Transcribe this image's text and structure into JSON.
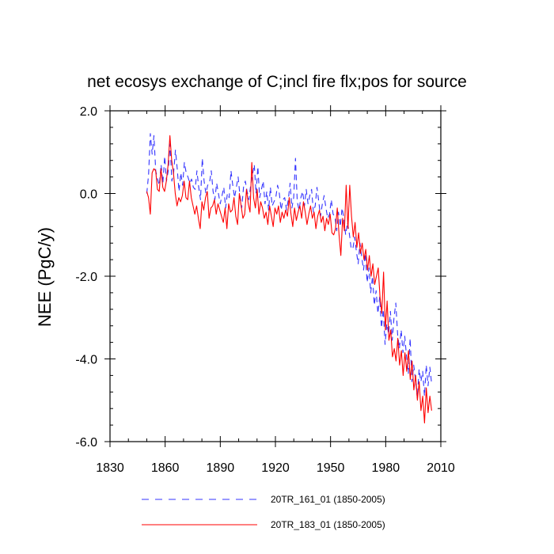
{
  "chart_data": {
    "type": "line",
    "title": "net ecosys exchange of C;incl fire flx;pos for source",
    "xlabel": "",
    "ylabel": "NEE  (PgC/y)",
    "xlim": [
      1830,
      2010
    ],
    "ylim": [
      -6.0,
      2.0
    ],
    "xticks": [
      1830,
      1860,
      1890,
      1920,
      1950,
      1980,
      2010
    ],
    "xtick_labels": [
      "1830",
      "1860",
      "1890",
      "1920",
      "1950",
      "1980",
      "2010"
    ],
    "yticks": [
      -6.0,
      -4.0,
      -2.0,
      0.0,
      2.0
    ],
    "ytick_labels": [
      "-6.0",
      "-4.0",
      "-2.0",
      "0.0",
      "2.0"
    ],
    "x_start": 1850,
    "x_end": 2005,
    "legend_position": "bottom",
    "series": [
      {
        "name": "20TR_161_01 (1850-2005)",
        "color": "#3333ff",
        "dash": "dashed",
        "values": [
          0.0,
          0.45,
          1.45,
          0.95,
          1.4,
          0.55,
          0.35,
          0.2,
          0.7,
          0.25,
          0.9,
          0.3,
          0.55,
          1.2,
          0.3,
          0.5,
          1.05,
          0.6,
          0.05,
          0.5,
          0.2,
          0.75,
          0.5,
          0.4,
          0.25,
          0.35,
          0.15,
          0.1,
          0.55,
          0.15,
          -0.15,
          0.85,
          0.3,
          0.0,
          0.2,
          0.25,
          0.55,
          0.05,
          -0.15,
          0.25,
          0.0,
          -0.25,
          -0.05,
          0.15,
          -0.35,
          0.0,
          -0.1,
          0.55,
          0.2,
          -0.1,
          0.15,
          0.4,
          -0.05,
          -0.35,
          0.15,
          0.3,
          0.05,
          -0.15,
          0.2,
          0.45,
          0.7,
          0.0,
          0.65,
          -0.1,
          0.1,
          0.3,
          -0.25,
          0.05,
          -0.4,
          0.15,
          -0.3,
          -0.2,
          -0.1,
          0.2,
          0.0,
          -0.4,
          -0.15,
          -0.1,
          -0.4,
          -0.15,
          0.25,
          -0.35,
          -0.1,
          0.85,
          -0.2,
          -0.4,
          -0.1,
          0.05,
          -0.3,
          0.1,
          -0.25,
          -0.05,
          0.1,
          -0.45,
          -0.3,
          0.15,
          -0.2,
          -0.55,
          -0.25,
          -0.05,
          -0.35,
          -0.6,
          -0.5,
          -0.15,
          -0.5,
          -0.55,
          -0.9,
          -0.45,
          -0.8,
          -0.35,
          -0.6,
          -1.0,
          -0.7,
          -0.95,
          -1.3,
          -1.35,
          -1.05,
          -1.4,
          -1.7,
          -1.2,
          -1.55,
          -1.85,
          -1.45,
          -2.15,
          -1.8,
          -2.4,
          -2.0,
          -2.7,
          -2.35,
          -2.9,
          -2.5,
          -3.25,
          -2.8,
          -3.65,
          -3.15,
          -3.4,
          -2.85,
          -3.55,
          -3.0,
          -2.65,
          -3.4,
          -3.75,
          -3.3,
          -3.85,
          -3.45,
          -3.95,
          -4.35,
          -3.5,
          -4.55,
          -4.15,
          -4.5,
          -4.95,
          -4.25,
          -4.55,
          -4.3,
          -4.9,
          -4.15,
          -4.65,
          -4.2,
          -4.6
        ]
      },
      {
        "name": "20TR_183_01 (1850-2005)",
        "color": "#ff0000",
        "dash": "solid",
        "values": [
          0.05,
          -0.1,
          -0.5,
          0.5,
          0.6,
          0.55,
          0.1,
          0.05,
          0.6,
          0.15,
          0.05,
          0.3,
          0.7,
          1.4,
          0.8,
          0.5,
          0.0,
          -0.3,
          -0.1,
          -0.2,
          -0.05,
          0.3,
          -0.1,
          -0.15,
          0.3,
          -0.1,
          -0.3,
          -0.5,
          -0.3,
          -0.6,
          -0.85,
          -0.2,
          -0.4,
          -0.1,
          0.05,
          -0.6,
          -0.35,
          -0.3,
          -0.15,
          -0.5,
          -0.25,
          -0.4,
          -0.55,
          -0.7,
          -0.35,
          -0.85,
          -0.25,
          -0.45,
          -0.4,
          -0.1,
          -0.55,
          -0.75,
          0.0,
          -0.3,
          -0.6,
          -0.5,
          0.1,
          -0.25,
          -0.45,
          0.75,
          -0.1,
          -0.35,
          0.1,
          -0.5,
          -0.2,
          -0.35,
          -0.6,
          -0.45,
          -0.75,
          -0.3,
          -0.55,
          -0.8,
          -0.35,
          -0.5,
          -0.3,
          -0.7,
          -0.45,
          -0.6,
          -0.4,
          -0.55,
          -0.1,
          -0.5,
          -0.8,
          -0.35,
          -0.65,
          -0.45,
          -0.3,
          -0.6,
          -0.2,
          -0.45,
          -0.75,
          -0.5,
          -0.3,
          -0.6,
          -0.45,
          -0.85,
          -0.55,
          -0.4,
          -0.7,
          -0.55,
          -0.9,
          -0.6,
          -0.75,
          -0.5,
          -0.95,
          -1.0,
          -0.85,
          -0.35,
          -1.0,
          -1.5,
          -0.6,
          -0.9,
          0.2,
          -0.85,
          0.2,
          -0.55,
          -1.05,
          -0.7,
          -1.3,
          -0.95,
          -1.45,
          -1.2,
          -1.6,
          -1.35,
          -1.85,
          -1.5,
          -2.0,
          -1.7,
          -2.2,
          -2.0,
          -1.8,
          -2.5,
          -2.9,
          -1.9,
          -3.3,
          -2.6,
          -3.55,
          -3.3,
          -3.95,
          -3.75,
          -4.05,
          -3.5,
          -4.15,
          -3.8,
          -4.4,
          -3.85,
          -4.3,
          -3.8,
          -4.5,
          -4.05,
          -4.75,
          -4.4,
          -5.0,
          -4.55,
          -5.25,
          -4.9,
          -5.55,
          -4.7,
          -5.3,
          -4.9,
          -5.25
        ]
      }
    ]
  }
}
